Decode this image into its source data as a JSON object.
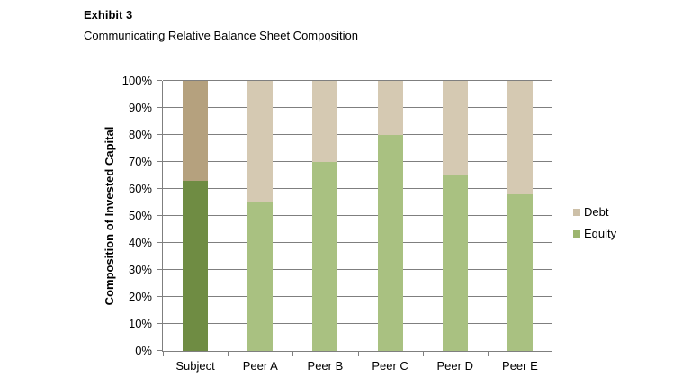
{
  "exhibit": {
    "title": "Exhibit 3",
    "subtitle": "Communicating Relative Balance Sheet Composition"
  },
  "chart_data": {
    "type": "bar",
    "stacked": true,
    "title": "Communicating Relative Balance Sheet Composition",
    "xlabel": "",
    "ylabel": "Composition of Invested Capital",
    "categories": [
      "Subject",
      "Peer A",
      "Peer B",
      "Peer C",
      "Peer D",
      "Peer E"
    ],
    "series": [
      {
        "name": "Equity",
        "values": [
          63,
          55,
          70,
          80,
          65,
          58
        ],
        "color": "#a9c181",
        "highlight_color": "#6f8c43",
        "legend_color": "#9cb56f"
      },
      {
        "name": "Debt",
        "values": [
          37,
          45,
          30,
          20,
          35,
          42
        ],
        "color": "#d5c9b2",
        "highlight_color": "#b5a17e",
        "legend_color": "#cdc0a8"
      }
    ],
    "highlight_category": "Subject",
    "ylim": [
      0,
      100
    ],
    "ytick_labels": [
      "0%",
      "10%",
      "20%",
      "30%",
      "40%",
      "50%",
      "60%",
      "70%",
      "80%",
      "90%",
      "100%"
    ],
    "grid": true,
    "legend": {
      "position": "right",
      "entries": [
        "Debt",
        "Equity"
      ]
    },
    "axis_color": "#7f7f7f",
    "gridline_color": "#7f7f7f"
  }
}
